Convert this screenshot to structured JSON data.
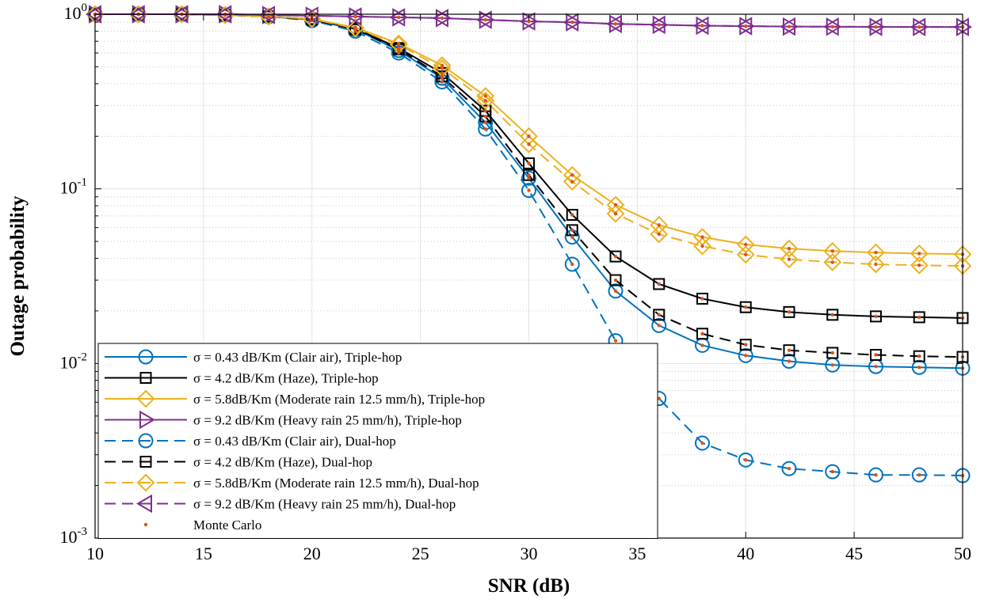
{
  "chart_data": {
    "type": "line",
    "title": "",
    "xlabel": "SNR (dB)",
    "ylabel": "Outage probability",
    "xlim": [
      10,
      50
    ],
    "ylim": [
      0.001,
      1
    ],
    "yscale": "log",
    "grid": true,
    "legend_position": "bottom-left",
    "x_ticks": [
      "10",
      "15",
      "20",
      "25",
      "30",
      "35",
      "40",
      "45",
      "50"
    ],
    "y_ticks": [
      {
        "base": "10",
        "exp": "0"
      },
      {
        "base": "10",
        "exp": "-1"
      },
      {
        "base": "10",
        "exp": "-2"
      },
      {
        "base": "10",
        "exp": "-3"
      }
    ],
    "x": [
      10,
      12,
      14,
      16,
      18,
      20,
      22,
      24,
      26,
      28,
      30,
      32,
      34,
      36,
      38,
      40,
      42,
      44,
      46,
      48,
      50
    ],
    "series": [
      {
        "name": "σ = 0.43 dB/Km (Clair air), Triple-hop",
        "color": "#0072bd",
        "line": "solid",
        "marker": "circle",
        "values": [
          1,
          1,
          1,
          0.99,
          0.97,
          0.93,
          0.82,
          0.62,
          0.43,
          0.24,
          0.115,
          0.053,
          0.026,
          0.0165,
          0.0127,
          0.0111,
          0.0103,
          0.0098,
          0.0096,
          0.0095,
          0.0094
        ]
      },
      {
        "name": "σ = 4.2 dB/Km (Haze), Triple-hop",
        "color": "#000000",
        "line": "solid",
        "marker": "square",
        "values": [
          1,
          1,
          1,
          0.99,
          0.97,
          0.94,
          0.83,
          0.64,
          0.46,
          0.28,
          0.14,
          0.071,
          0.041,
          0.0285,
          0.0235,
          0.021,
          0.0197,
          0.019,
          0.0186,
          0.0184,
          0.0182
        ]
      },
      {
        "name": "σ = 5.8dB/Km (Moderate rain 12.5 mm/h), Triple-hop",
        "color": "#edb120",
        "line": "solid",
        "marker": "diamond",
        "values": [
          1,
          1,
          1,
          0.99,
          0.97,
          0.94,
          0.84,
          0.68,
          0.51,
          0.34,
          0.2,
          0.12,
          0.081,
          0.062,
          0.053,
          0.048,
          0.0455,
          0.044,
          0.0432,
          0.0426,
          0.0422
        ]
      },
      {
        "name": "σ = 9.2 dB/Km (Heavy rain 25 mm/h), Triple-hop",
        "color": "#7e2f8e",
        "line": "solid",
        "marker": "triangle-right",
        "values": [
          1,
          1,
          1,
          1,
          0.99,
          0.98,
          0.97,
          0.96,
          0.95,
          0.93,
          0.91,
          0.9,
          0.88,
          0.87,
          0.86,
          0.855,
          0.85,
          0.848,
          0.846,
          0.845,
          0.845
        ]
      },
      {
        "name": "σ = 0.43 dB/Km (Clair air), Dual-hop",
        "color": "#0072bd",
        "line": "dashed",
        "marker": "circle",
        "values": [
          1,
          1,
          1,
          0.99,
          0.97,
          0.92,
          0.8,
          0.6,
          0.41,
          0.22,
          0.098,
          0.037,
          0.0135,
          0.0063,
          0.0035,
          0.0028,
          0.0025,
          0.0024,
          0.0023,
          0.0023,
          0.00228
        ]
      },
      {
        "name": "σ = 4.2 dB/Km (Haze), Dual-hop",
        "color": "#000000",
        "line": "dashed",
        "marker": "square",
        "values": [
          1,
          1,
          1,
          0.99,
          0.97,
          0.93,
          0.82,
          0.63,
          0.44,
          0.26,
          0.12,
          0.058,
          0.03,
          0.019,
          0.0148,
          0.0128,
          0.0119,
          0.0115,
          0.0112,
          0.011,
          0.0109
        ]
      },
      {
        "name": "σ = 5.8dB/Km (Moderate rain 12.5 mm/h), Dual-hop",
        "color": "#edb120",
        "line": "dashed",
        "marker": "diamond",
        "values": [
          1,
          1,
          1,
          0.99,
          0.97,
          0.94,
          0.83,
          0.67,
          0.49,
          0.32,
          0.18,
          0.11,
          0.072,
          0.055,
          0.047,
          0.042,
          0.0395,
          0.038,
          0.037,
          0.0365,
          0.0362
        ]
      },
      {
        "name": "σ = 9.2 dB/Km (Heavy rain 25 mm/h), Dual-hop",
        "color": "#7e2f8e",
        "line": "dashed",
        "marker": "triangle-left",
        "values": [
          1,
          1,
          1,
          1,
          0.99,
          0.98,
          0.97,
          0.96,
          0.95,
          0.93,
          0.91,
          0.9,
          0.88,
          0.87,
          0.86,
          0.855,
          0.85,
          0.848,
          0.846,
          0.845,
          0.845
        ]
      }
    ],
    "monte_carlo": {
      "name": "Monte Carlo",
      "color": "#d95319",
      "marker": "dot"
    }
  }
}
